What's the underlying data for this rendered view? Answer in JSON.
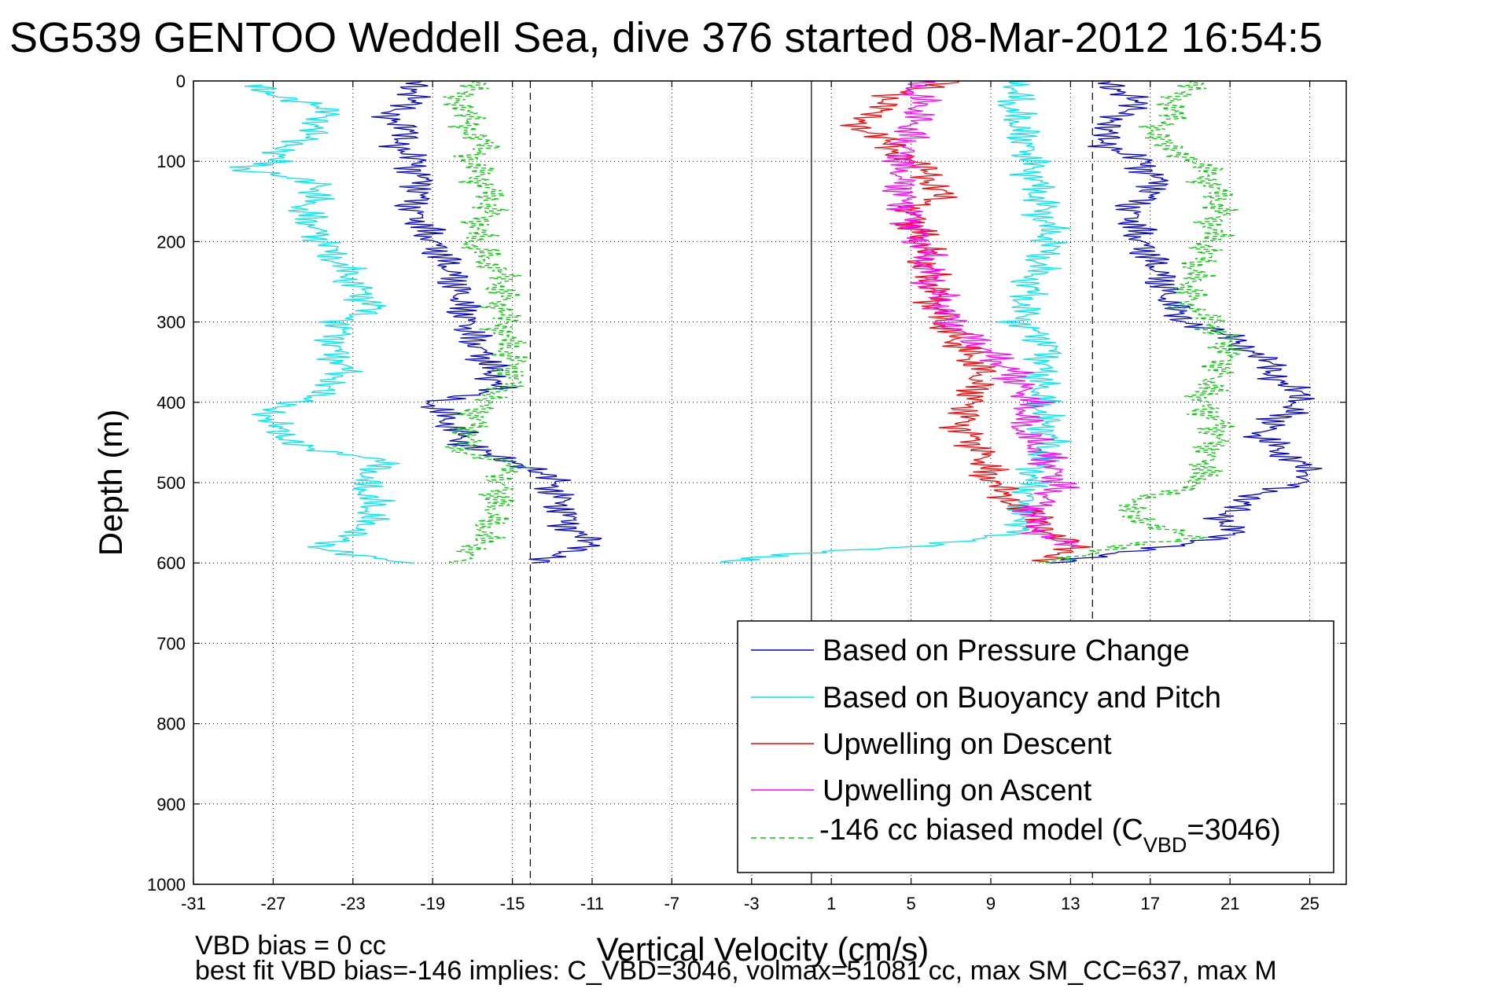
{
  "chart_data": {
    "type": "line",
    "title": "SG539 GENTOO Weddell Sea, dive 376 started 08-Mar-2012 16:54:5",
    "xlabel": "Vertical Velocity (cm/s)",
    "ylabel": "Depth (m)",
    "xlim": [
      -31,
      28
    ],
    "ylim": [
      0,
      1000
    ],
    "y_reversed": true,
    "grid": "dotted",
    "x_ticks": [
      "-31",
      "-27",
      "-23",
      "-19",
      "-15",
      "-11",
      "-7",
      "-3",
      "1",
      "5",
      "9",
      "13",
      "17",
      "21",
      "25"
    ],
    "y_ticks": [
      "0",
      "100",
      "200",
      "300",
      "400",
      "500",
      "600",
      "700",
      "800",
      "900",
      "1000"
    ],
    "reference_lines": [
      {
        "x": 0,
        "style": "solid"
      },
      {
        "x": -14.1,
        "style": "dashed"
      },
      {
        "x": 14.1,
        "style": "dashed"
      }
    ],
    "legend_position": "lower-right",
    "series": [
      {
        "name": "Based on Pressure Change",
        "color": "#0000cc",
        "style": "solid",
        "segments": [
          {
            "depth": [
              0,
              20,
              40,
              60,
              80,
              100,
              130,
              160,
              200,
              240,
              280,
              320,
              360,
              380,
              400,
              430,
              460,
              480,
              500,
              530,
              560,
              580,
              600
            ],
            "x": [
              -19.5,
              -20,
              -21,
              -20.5,
              -20.5,
              -20,
              -19.5,
              -20,
              -19,
              -18,
              -17.5,
              -17,
              -16,
              -15.5,
              -19,
              -18,
              -17,
              -14,
              -13,
              -12.5,
              -12,
              -11,
              -14
            ]
          },
          {
            "depth": [
              0,
              20,
              40,
              60,
              80,
              100,
              130,
              160,
              200,
              240,
              280,
              300,
              320,
              340,
              360,
              380,
              400,
              440,
              470,
              490,
              500,
              520,
              540,
              560,
              580,
              600
            ],
            "x": [
              15,
              16,
              16,
              14.5,
              15,
              16.5,
              17.5,
              16,
              16.5,
              17.5,
              18,
              19,
              21,
              22.5,
              23,
              24,
              24.5,
              22.5,
              24,
              25,
              24.5,
              22,
              20.5,
              21.5,
              18,
              12
            ]
          }
        ]
      },
      {
        "name": "Based on Buoyancy and Pitch",
        "color": "#00e5ee",
        "style": "solid",
        "segments": [
          {
            "depth": [
              5,
              20,
              40,
              60,
              80,
              100,
              110,
              130,
              160,
              200,
              250,
              280,
              300,
              330,
              360,
              380,
              400,
              420,
              440,
              460,
              470,
              500,
              530,
              560,
              580,
              600
            ],
            "x": [
              -28,
              -26.5,
              -24,
              -25,
              -26,
              -27,
              -28.5,
              -24.5,
              -25.5,
              -24.5,
              -23,
              -22,
              -23.5,
              -24,
              -23.5,
              -24,
              -26,
              -27.5,
              -26.5,
              -25,
              -21.5,
              -22.5,
              -22,
              -22.5,
              -25,
              -20
            ]
          },
          {
            "depth": [
              0,
              30,
              60,
              100,
              150,
              200,
              250,
              300,
              330,
              360,
              400,
              450,
              500,
              540,
              560,
              580,
              590,
              600
            ],
            "x": [
              10.5,
              10,
              10.5,
              11,
              11.5,
              12,
              11,
              10.5,
              12,
              11.5,
              11.5,
              12,
              11,
              10.5,
              11,
              5,
              -2,
              -4
            ]
          }
        ]
      },
      {
        "name": "Upwelling on Descent",
        "color": "#ff0000",
        "style": "solid",
        "segments": [
          {
            "depth": [
              0,
              20,
              40,
              60,
              80,
              100,
              120,
              140,
              160,
              200,
              250,
              300,
              330,
              360,
              400,
              430,
              460,
              500,
              520,
              540,
              560,
              580,
              600
            ],
            "x": [
              7,
              4,
              3,
              2.5,
              4,
              5,
              6,
              6.5,
              5,
              5.5,
              6,
              6.5,
              7.5,
              8.5,
              8,
              7.5,
              8.5,
              9,
              10,
              11,
              12,
              13,
              12
            ]
          }
        ]
      },
      {
        "name": "Upwelling on Ascent",
        "color": "#ff00ff",
        "style": "solid",
        "segments": [
          {
            "depth": [
              0,
              30,
              60,
              100,
              140,
              170,
              200,
              250,
              300,
              330,
              360,
              400,
              430,
              460,
              500,
              540,
              560,
              580
            ],
            "x": [
              5,
              5.5,
              5,
              4.5,
              4.5,
              5,
              5.5,
              6,
              7,
              8.5,
              10,
              11,
              10.5,
              11.5,
              12.5,
              11,
              11.5,
              13
            ]
          }
        ]
      },
      {
        "name": "-146 cc biased model (C_VBD=3046)",
        "color": "#00cc00",
        "style": "dashed",
        "segments": [
          {
            "depth": [
              0,
              20,
              40,
              60,
              80,
              100,
              150,
              200,
              230,
              250,
              280,
              300,
              350,
              380,
              400,
              430,
              460,
              480,
              500,
              540,
              570,
              590,
              600
            ],
            "x": [
              -17,
              -17.5,
              -17.5,
              -17,
              -16.5,
              -17,
              -16,
              -17,
              -16,
              -15.5,
              -15.5,
              -15.5,
              -15,
              -15,
              -16.5,
              -17,
              -17.5,
              -15,
              -15.5,
              -16,
              -16.5,
              -17,
              -18
            ]
          },
          {
            "depth": [
              0,
              20,
              40,
              60,
              80,
              100,
              150,
              200,
              250,
              280,
              300,
              330,
              360,
              400,
              430,
              460,
              500,
              530,
              550,
              570,
              580,
              600
            ],
            "x": [
              19,
              18.5,
              18,
              17.5,
              17.5,
              19.5,
              20.5,
              20,
              19,
              19,
              20,
              21,
              20.5,
              19.5,
              20.5,
              20,
              19.5,
              15.5,
              17,
              19,
              15,
              12
            ]
          }
        ]
      }
    ]
  },
  "legend": {
    "entries": [
      "Based on Pressure Change",
      "Based on Buoyancy and Pitch",
      "Upwelling on Descent",
      "Upwelling on Ascent"
    ],
    "model_prefix": "-146 cc biased model (C",
    "model_subscript": "VBD",
    "model_suffix": "=3046)"
  },
  "footer": {
    "line1": "VBD bias = 0 cc",
    "line2": "best fit VBD bias=-146 implies: C_VBD=3046, volmax=51081 cc, max SM_CC=637, max M"
  }
}
